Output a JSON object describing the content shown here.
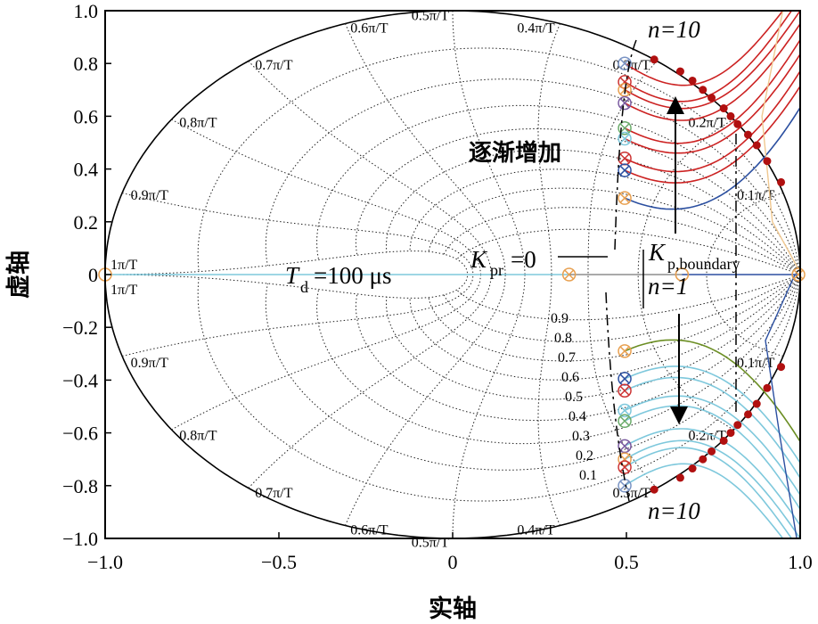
{
  "chart_data": {
    "type": "scatter",
    "xlabel": "实轴",
    "ylabel": "虚轴",
    "xlim": [
      -1.0,
      1.0
    ],
    "ylim": [
      -1.0,
      1.0
    ],
    "x_ticks": [
      "−1.0",
      "−0.5",
      "0",
      "0.5",
      "1.0"
    ],
    "y_ticks": [
      "1.0",
      "0.8",
      "0.6",
      "0.4",
      "0.2",
      "0",
      "−0.2",
      "−0.4",
      "−0.6",
      "−0.8",
      "−1.0"
    ],
    "grid": "z-plane damping / natural-frequency grid (dotted)",
    "unit_circle": true,
    "frequency_labels": [
      "0.1π/T",
      "0.2π/T",
      "0.3π/T",
      "0.4π/T",
      "0.5π/T",
      "0.6π/T",
      "0.7π/T",
      "0.8π/T",
      "0.9π/T",
      "1π/T"
    ],
    "damping_labels": [
      "0.1",
      "0.2",
      "0.3",
      "0.4",
      "0.5",
      "0.6",
      "0.7",
      "0.8",
      "0.9"
    ],
    "annotations": {
      "increasing": "逐渐增加",
      "n_top": "n=10",
      "n_one": "n=1",
      "n_bottom": "n=10",
      "kpr": "K",
      "kpr_sub": "pr",
      "kpr_value": "=0",
      "kpb": "K",
      "kpb_sub": "p,boundary",
      "td": "T",
      "td_sub": "d",
      "td_value": "=100 μs"
    },
    "branch_colors": {
      "upper": "#cc2222",
      "upper_n1": "#2b4fa0",
      "lower": "#7ec8dc",
      "lower_n1": "#6b8e23",
      "right": "#2b4fa0",
      "faint": "#f0c890",
      "boundary_dot": "#b01010"
    },
    "open_loop_poles": [
      {
        "x": 0.495,
        "y": 0.8,
        "color": "#7a94c4"
      },
      {
        "x": 0.495,
        "y": 0.73,
        "color": "#cc3333"
      },
      {
        "x": 0.495,
        "y": 0.7,
        "color": "#e8a050"
      },
      {
        "x": 0.495,
        "y": 0.65,
        "color": "#7a5aa0"
      },
      {
        "x": 0.495,
        "y": 0.555,
        "color": "#6aaa6a"
      },
      {
        "x": 0.495,
        "y": 0.515,
        "color": "#7ec8dc"
      },
      {
        "x": 0.495,
        "y": 0.44,
        "color": "#cc3333"
      },
      {
        "x": 0.495,
        "y": 0.395,
        "color": "#2b4fa0"
      },
      {
        "x": 0.495,
        "y": 0.29,
        "color": "#e8a050"
      },
      {
        "x": 0.495,
        "y": -0.29,
        "color": "#e8a050"
      },
      {
        "x": 0.495,
        "y": -0.395,
        "color": "#2b4fa0"
      },
      {
        "x": 0.495,
        "y": -0.44,
        "color": "#cc3333"
      },
      {
        "x": 0.495,
        "y": -0.515,
        "color": "#7ec8dc"
      },
      {
        "x": 0.495,
        "y": -0.555,
        "color": "#6aaa6a"
      },
      {
        "x": 0.495,
        "y": -0.65,
        "color": "#7a5aa0"
      },
      {
        "x": 0.495,
        "y": -0.7,
        "color": "#e8a050"
      },
      {
        "x": 0.495,
        "y": -0.73,
        "color": "#cc3333"
      },
      {
        "x": 0.495,
        "y": -0.8,
        "color": "#7a94c4"
      },
      {
        "x": 0.335,
        "y": 0.0,
        "color": "#e8a050"
      },
      {
        "x": 0.995,
        "y": 0.0,
        "color": "#e8a050"
      }
    ],
    "zeros": [
      {
        "x": -1.0,
        "y": 0.0,
        "color": "#e8a050"
      },
      {
        "x": 0.66,
        "y": 0.0,
        "color": "#e8a050"
      }
    ],
    "boundary_points": [
      {
        "x": 0.58,
        "y": 0.815
      },
      {
        "x": 0.655,
        "y": 0.77
      },
      {
        "x": 0.69,
        "y": 0.735
      },
      {
        "x": 0.72,
        "y": 0.7
      },
      {
        "x": 0.745,
        "y": 0.67
      },
      {
        "x": 0.78,
        "y": 0.63
      },
      {
        "x": 0.8,
        "y": 0.6
      },
      {
        "x": 0.82,
        "y": 0.57
      },
      {
        "x": 0.85,
        "y": 0.53
      },
      {
        "x": 0.875,
        "y": 0.49
      },
      {
        "x": 0.905,
        "y": 0.43
      },
      {
        "x": 0.945,
        "y": 0.35
      },
      {
        "x": 0.58,
        "y": -0.815
      },
      {
        "x": 0.655,
        "y": -0.77
      },
      {
        "x": 0.69,
        "y": -0.735
      },
      {
        "x": 0.72,
        "y": -0.7
      },
      {
        "x": 0.745,
        "y": -0.67
      },
      {
        "x": 0.78,
        "y": -0.63
      },
      {
        "x": 0.8,
        "y": -0.6
      },
      {
        "x": 0.82,
        "y": -0.57
      },
      {
        "x": 0.85,
        "y": -0.53
      },
      {
        "x": 0.875,
        "y": -0.49
      },
      {
        "x": 0.905,
        "y": -0.43
      },
      {
        "x": 0.945,
        "y": -0.35
      }
    ]
  }
}
